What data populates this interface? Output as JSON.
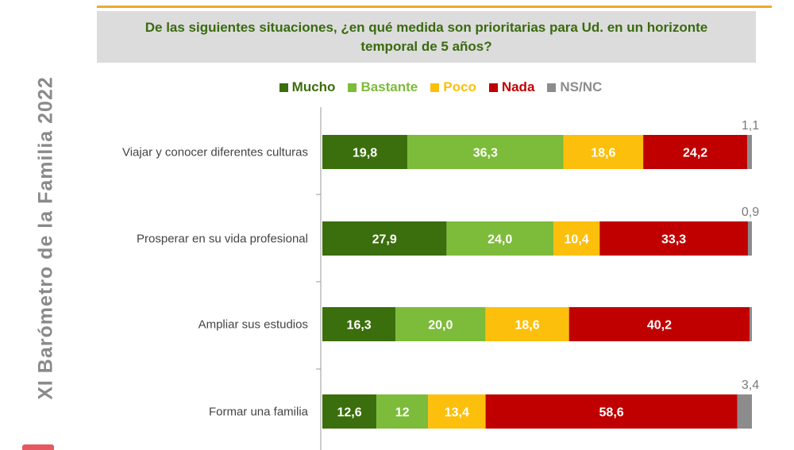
{
  "side_title": "XI  Barómetro de la Familia  2022",
  "chart_data": {
    "type": "bar",
    "orientation": "horizontal",
    "stacked": true,
    "title": "De las siguientes situaciones, ¿en qué medida son prioritarias para Ud. en un horizonte temporal de 5 años?",
    "legend_position": "top",
    "grid": false,
    "categories": [
      "Viajar y conocer diferentes culturas",
      "Prosperar en su vida profesional",
      "Ampliar sus estudios",
      "Formar una familia"
    ],
    "series": [
      {
        "name": "Mucho",
        "color": "#3b6e0c",
        "values": [
          19.8,
          27.9,
          16.3,
          12.6
        ],
        "labels": [
          "19,8",
          "27,9",
          "16,3",
          "12,6"
        ]
      },
      {
        "name": "Bastante",
        "color": "#7dbb3a",
        "values": [
          36.3,
          24.0,
          20.0,
          12
        ],
        "labels": [
          "36,3",
          "24,0",
          "20,0",
          "12"
        ]
      },
      {
        "name": "Poco",
        "color": "#fcbf0c",
        "values": [
          18.6,
          10.4,
          18.6,
          13.4
        ],
        "labels": [
          "18,6",
          "10,4",
          "18,6",
          "13,4"
        ]
      },
      {
        "name": "Nada",
        "color": "#c00000",
        "values": [
          24.2,
          33.3,
          40.2,
          58.6
        ],
        "labels": [
          "24,2",
          "33,3",
          "40,2",
          "58,6"
        ]
      },
      {
        "name": "NS/NC",
        "color": "#8c8c8c",
        "values": [
          1.1,
          0.9,
          0.5,
          3.4
        ],
        "labels": [
          "1,1",
          "0,9",
          "",
          "3,4"
        ]
      }
    ]
  }
}
